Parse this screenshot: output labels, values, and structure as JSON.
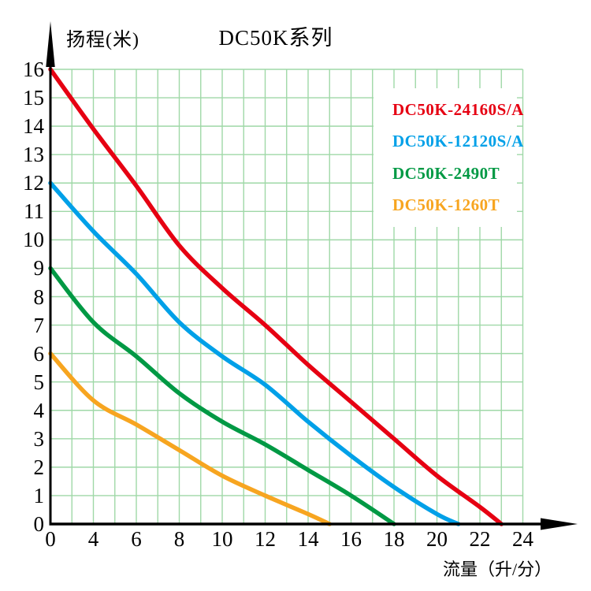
{
  "title": "DC50K系列",
  "colors": {
    "grid": "#9fd8a7",
    "axis": "#000000",
    "background": "#ffffff"
  },
  "chart_data": {
    "type": "line",
    "title": "DC50K系列",
    "xlabel": "流量（升/分）",
    "ylabel": "扬程(米)",
    "x_ticks": [
      0,
      4,
      6,
      8,
      10,
      12,
      14,
      16,
      18,
      20,
      22,
      24
    ],
    "y_ticks": [
      16,
      15,
      14,
      13,
      12,
      11,
      10,
      9,
      8,
      7,
      6,
      5,
      4,
      3,
      2,
      1,
      0
    ],
    "xlim": [
      0,
      24
    ],
    "ylim": [
      0,
      16
    ],
    "grid": true,
    "legend_position": "top-right",
    "series": [
      {
        "name": "DC50K-24160S/A",
        "color": "#e60012",
        "points": [
          [
            0,
            16
          ],
          [
            4,
            13.9
          ],
          [
            6,
            11.9
          ],
          [
            8,
            9.8
          ],
          [
            10,
            8.3
          ],
          [
            12,
            7.0
          ],
          [
            14,
            5.6
          ],
          [
            16,
            4.3
          ],
          [
            18,
            3.0
          ],
          [
            20,
            1.7
          ],
          [
            22,
            0.6
          ],
          [
            23,
            0
          ]
        ]
      },
      {
        "name": "DC50K-12120S/A",
        "color": "#00a0e8",
        "points": [
          [
            0,
            12
          ],
          [
            4,
            10.3
          ],
          [
            6,
            8.8
          ],
          [
            8,
            7.1
          ],
          [
            10,
            5.9
          ],
          [
            12,
            4.9
          ],
          [
            14,
            3.6
          ],
          [
            16,
            2.4
          ],
          [
            18,
            1.3
          ],
          [
            20,
            0.35
          ],
          [
            21,
            0
          ]
        ]
      },
      {
        "name": "DC50K-2490T",
        "color": "#009944",
        "points": [
          [
            0,
            9
          ],
          [
            4,
            7.1
          ],
          [
            6,
            5.9
          ],
          [
            8,
            4.6
          ],
          [
            10,
            3.6
          ],
          [
            12,
            2.8
          ],
          [
            14,
            1.9
          ],
          [
            16,
            1.0
          ],
          [
            18,
            0
          ]
        ]
      },
      {
        "name": "DC50K-1260T",
        "color": "#f7a520",
        "points": [
          [
            0,
            6
          ],
          [
            4,
            4.35
          ],
          [
            6,
            3.5
          ],
          [
            8,
            2.6
          ],
          [
            10,
            1.7
          ],
          [
            12,
            1.0
          ],
          [
            14,
            0.35
          ],
          [
            15,
            0
          ]
        ]
      }
    ]
  }
}
